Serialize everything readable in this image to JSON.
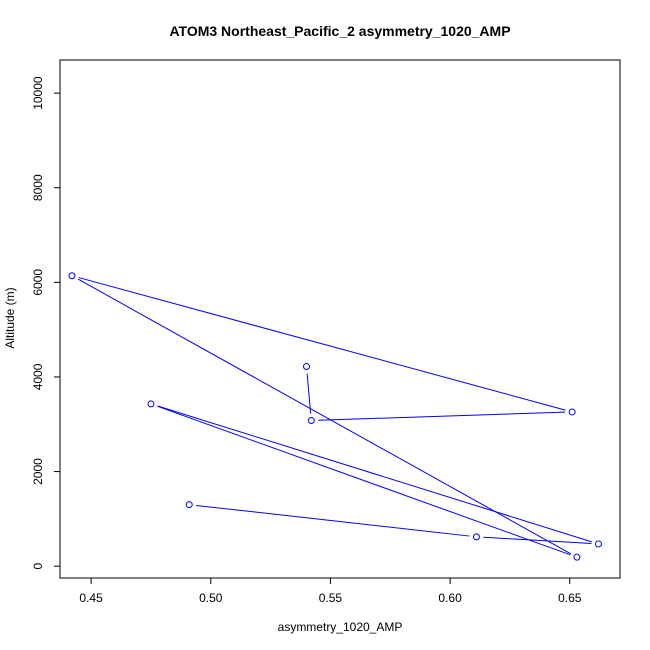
{
  "chart_data": {
    "type": "line",
    "title": "ATOM3 Northeast_Pacific_2 asymmetry_1020_AMP",
    "xlabel": "asymmetry_1020_AMP",
    "ylabel": "Altitude (m)",
    "xlim": [
      0.437,
      0.671
    ],
    "ylim": [
      -250,
      10700
    ],
    "x_ticks": [
      0.45,
      0.5,
      0.55,
      0.6,
      0.65
    ],
    "x_tick_labels": [
      "0.45",
      "0.50",
      "0.55",
      "0.60",
      "0.65"
    ],
    "y_ticks": [
      0,
      2000,
      4000,
      6000,
      8000,
      10000
    ],
    "y_tick_labels": [
      "0",
      "2000",
      "4000",
      "6000",
      "8000",
      "10000"
    ],
    "grid": false,
    "series": [
      {
        "line_color": "#0000ff",
        "marker": "open-circle",
        "x": [
          0.491,
          0.611,
          0.662,
          0.475,
          0.653,
          0.442,
          0.651,
          0.542,
          0.54
        ],
        "y": [
          1300,
          620,
          470,
          3430,
          190,
          6140,
          3260,
          3080,
          4220
        ]
      }
    ]
  }
}
